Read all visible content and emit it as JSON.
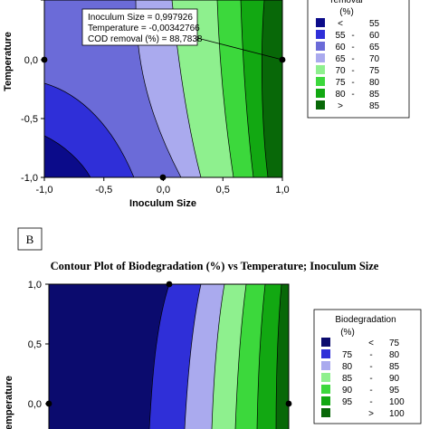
{
  "chart_data": [
    {
      "type": "contour",
      "title": "",
      "xlabel": "Inoculum Size",
      "ylabel": "Temperature",
      "xlim": [
        -1,
        1
      ],
      "ylim": [
        -1,
        0.1
      ],
      "x_ticks": [
        "-1,0",
        "-0,5",
        "0,0",
        "0,5",
        "1,0"
      ],
      "y_ticks": [
        "0,0",
        "-0,5",
        "-1,0"
      ],
      "legend": {
        "title_line1": "removal",
        "title_line2": "(%)",
        "placement": "right",
        "rows": [
          {
            "lo": "<",
            "hi": "55",
            "color": "#0b0b8a"
          },
          {
            "lo": "55",
            "hi": "60",
            "color": "#2f2fd8"
          },
          {
            "lo": "60",
            "hi": "65",
            "color": "#6b6bd8"
          },
          {
            "lo": "65",
            "hi": "70",
            "color": "#aaaaee"
          },
          {
            "lo": "70",
            "hi": "75",
            "color": "#8ef08e"
          },
          {
            "lo": "75",
            "hi": "80",
            "color": "#3cd83c"
          },
          {
            "lo": "80",
            "hi": "85",
            "color": "#12a812"
          },
          {
            "lo": ">",
            "hi": "85",
            "color": "#086808"
          }
        ]
      },
      "tooltip": {
        "line1": "Inoculum Size = 0,997926",
        "line2": "Temperature = -0,00342766",
        "line3": "COD removal (%) = 88,7838"
      },
      "design_points": [
        {
          "x": -1,
          "y": 0
        },
        {
          "x": 1,
          "y": 0
        },
        {
          "x": 0,
          "y": -1
        }
      ]
    },
    {
      "type": "contour",
      "panel_label": "B",
      "title": "Contour Plot of Biodegradation (%) vs Temperature; Inoculum Size",
      "xlabel": "",
      "ylabel": "Temperature",
      "xlim": [
        -1,
        1
      ],
      "ylim": [
        -0.1,
        1
      ],
      "y_ticks": [
        "1,0",
        "0,5",
        "0,0"
      ],
      "legend": {
        "title_line1": "Biodegradation",
        "title_line2": "(%)",
        "placement": "right",
        "rows": [
          {
            "lo": "<",
            "hi": "75",
            "color": "#0b0b6e"
          },
          {
            "lo": "75",
            "hi": "80",
            "color": "#2f2fd8"
          },
          {
            "lo": "80",
            "hi": "85",
            "color": "#aaaaee"
          },
          {
            "lo": "85",
            "hi": "90",
            "color": "#8ef08e"
          },
          {
            "lo": "90",
            "hi": "95",
            "color": "#3cd83c"
          },
          {
            "lo": "95",
            "hi": "100",
            "color": "#12a812"
          },
          {
            "lo": ">",
            "hi": "100",
            "color": "#086808"
          }
        ]
      },
      "design_points": [
        {
          "x": 0,
          "y": 1
        },
        {
          "x": -1,
          "y": 0
        },
        {
          "x": 1,
          "y": 0
        }
      ]
    }
  ]
}
